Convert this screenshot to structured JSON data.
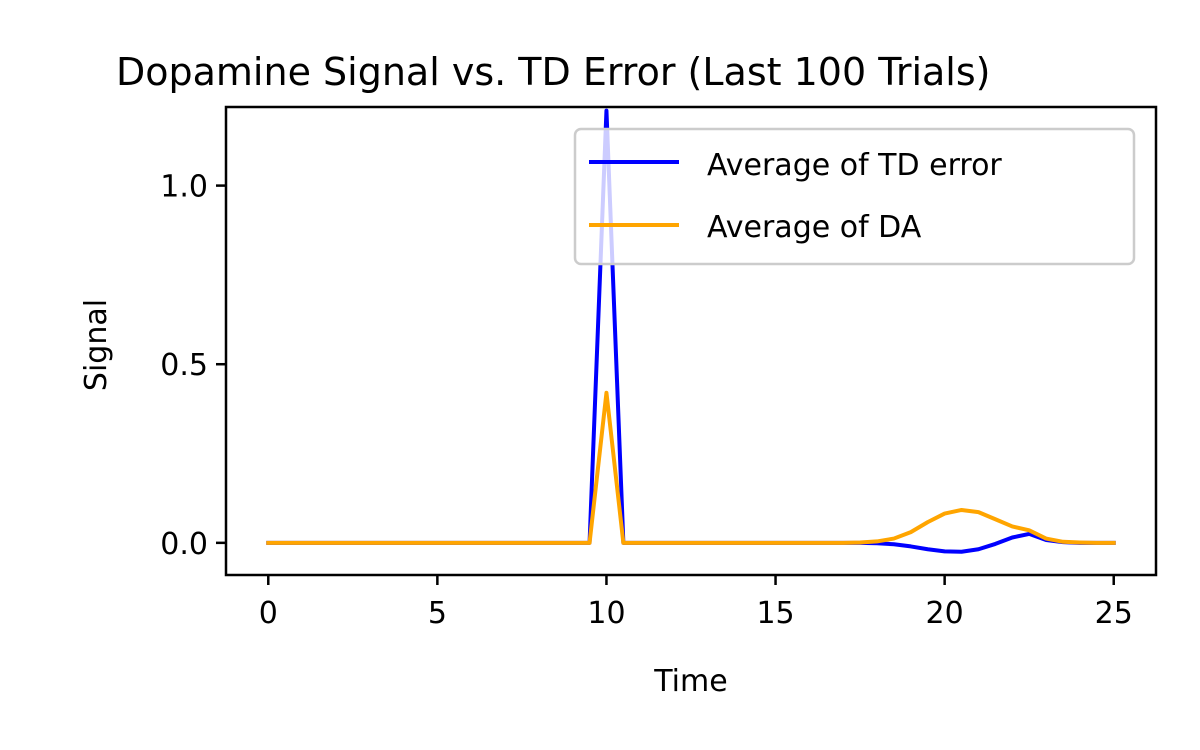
{
  "chart_data": {
    "type": "line",
    "title": "Dopamine Signal vs. TD Error (Last 100 Trials)",
    "xlabel": "Time",
    "ylabel": "Signal",
    "xlim": [
      -1.25,
      26.25
    ],
    "ylim": [
      -0.09,
      1.22
    ],
    "xticks": [
      0,
      5,
      10,
      15,
      20,
      25
    ],
    "xtick_labels": [
      "0",
      "5",
      "10",
      "15",
      "20",
      "25"
    ],
    "yticks": [
      0.0,
      0.5,
      1.0
    ],
    "ytick_labels": [
      "0.0",
      "0.5",
      "1.0"
    ],
    "grid": false,
    "legend_position": "top-right",
    "x": [
      0,
      0.5,
      1,
      1.5,
      2,
      2.5,
      3,
      3.5,
      4,
      4.5,
      5,
      5.5,
      6,
      6.5,
      7,
      7.5,
      8,
      8.5,
      9,
      9.5,
      10,
      10.5,
      11,
      11.5,
      12,
      12.5,
      13,
      13.5,
      14,
      14.5,
      15,
      15.5,
      16,
      16.5,
      17,
      17.5,
      18,
      18.5,
      19,
      19.5,
      20,
      20.5,
      21,
      21.5,
      22,
      22.5,
      23,
      23.5,
      24,
      24.5,
      25
    ],
    "series": [
      {
        "name": "Average of TD error",
        "color": "#0000ff",
        "values": [
          0,
          0,
          0,
          0,
          0,
          0,
          0,
          0,
          0,
          0,
          0,
          0,
          0,
          0,
          0,
          0,
          0,
          0,
          0,
          0,
          1.21,
          0,
          0,
          0,
          0,
          0,
          0,
          0,
          0,
          0,
          0,
          0,
          0,
          0,
          0,
          0,
          -0.001,
          -0.004,
          -0.01,
          -0.018,
          -0.024,
          -0.025,
          -0.018,
          -0.003,
          0.015,
          0.025,
          0.008,
          0.002,
          0,
          0,
          0
        ]
      },
      {
        "name": "Average of DA",
        "color": "#ffa500",
        "values": [
          0,
          0,
          0,
          0,
          0,
          0,
          0,
          0,
          0,
          0,
          0,
          0,
          0,
          0,
          0,
          0,
          0,
          0,
          0,
          0,
          0.42,
          0,
          0,
          0,
          0,
          0,
          0,
          0,
          0,
          0,
          0,
          0,
          0,
          0,
          0,
          0.001,
          0.004,
          0.012,
          0.03,
          0.058,
          0.082,
          0.092,
          0.086,
          0.066,
          0.046,
          0.035,
          0.012,
          0.003,
          0.001,
          0,
          0
        ]
      }
    ]
  }
}
